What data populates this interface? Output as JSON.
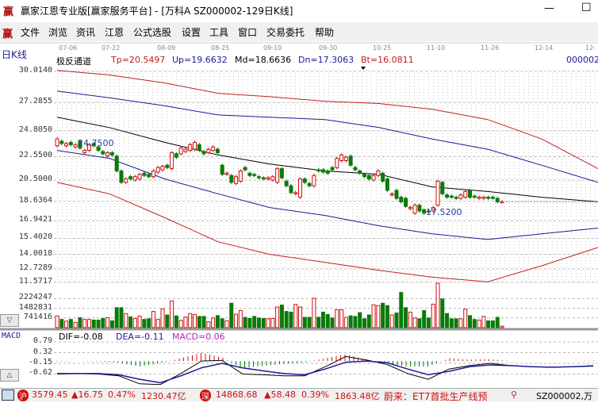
{
  "window": {
    "title": "赢家江恩专业版[赢家服务平台] - [万科A   SZ000002-129日K线]",
    "logo": "赢",
    "minimize_label": "—",
    "maximize_label": "☐"
  },
  "menu": {
    "logo": "赢",
    "items": [
      "文件",
      "浏览",
      "资讯",
      "江恩",
      "公式选股",
      "设置",
      "工具",
      "窗口",
      "交易委托",
      "帮助"
    ]
  },
  "chart_header": {
    "period_label": "日K线",
    "dates": [
      "07-06",
      "07-22",
      "08-09",
      "08-25",
      "09-10",
      "09-30",
      "10-25",
      "11-10",
      "11-26",
      "12-14",
      "12-"
    ],
    "indicator_name": "极反通道",
    "tp": "Tp=20.5497",
    "up": "Up=19.6632",
    "md": "Md=18.6636",
    "dn": "Dn=17.3063",
    "bt": "Bt=16.0811",
    "code_partial": "000002"
  },
  "colors": {
    "up": "#d01010",
    "down": "#0a7a0a",
    "tp": "#c02020",
    "band_blue": "#1a1a9a",
    "md": "#000000",
    "dea": "#1a1a9a",
    "macd_label": "#c020c0"
  },
  "chart_data": [
    {
      "type": "candlestick",
      "title": "万科A SZ000002 日K线",
      "y_ticks": [
        "30.0140",
        "27.2855",
        "24.8050",
        "22.5500",
        "20.5000",
        "18.6364",
        "16.9421",
        "15.4020",
        "14.0018",
        "12.7289",
        "11.5717"
      ],
      "annotations": {
        "high_label": "24.7500",
        "low_label": "17.5200"
      },
      "candles_open_close": [
        [
          23.5,
          24.1
        ],
        [
          23.9,
          23.7
        ],
        [
          23.5,
          23.7
        ],
        [
          23.8,
          23.6
        ],
        [
          23.4,
          23.6
        ],
        [
          23.9,
          23.3
        ],
        [
          22.9,
          23.1
        ],
        [
          23.1,
          23.6
        ],
        [
          23.7,
          23.5
        ],
        [
          23.4,
          23.1
        ],
        [
          23.0,
          22.8
        ],
        [
          22.6,
          22.9
        ],
        [
          22.9,
          22.7
        ],
        [
          22.6,
          21.3
        ],
        [
          21.3,
          20.3
        ],
        [
          20.3,
          20.6
        ],
        [
          20.8,
          20.6
        ],
        [
          20.5,
          20.8
        ],
        [
          20.6,
          21.0
        ],
        [
          21.1,
          20.9
        ],
        [
          21.0,
          20.8
        ],
        [
          20.8,
          21.3
        ],
        [
          21.2,
          21.6
        ],
        [
          21.4,
          21.7
        ],
        [
          21.8,
          21.6
        ],
        [
          21.5,
          22.9
        ],
        [
          22.8,
          22.5
        ],
        [
          22.8,
          23.3
        ],
        [
          23.0,
          23.2
        ],
        [
          23.1,
          23.6
        ],
        [
          23.2,
          23.8
        ],
        [
          23.6,
          23.1
        ],
        [
          23.0,
          22.8
        ],
        [
          22.9,
          23.2
        ],
        [
          23.1,
          23.4
        ],
        [
          23.2,
          22.9
        ],
        [
          21.8,
          21.0
        ],
        [
          21.0,
          21.1
        ],
        [
          20.9,
          20.3
        ],
        [
          20.2,
          20.8
        ],
        [
          20.4,
          21.3
        ],
        [
          21.6,
          21.4
        ],
        [
          21.1,
          20.9
        ],
        [
          21.0,
          20.9
        ],
        [
          20.8,
          20.7
        ],
        [
          20.7,
          20.6
        ],
        [
          20.6,
          20.7
        ],
        [
          20.5,
          20.8
        ],
        [
          20.3,
          21.5
        ],
        [
          21.5,
          20.7
        ],
        [
          20.4,
          20.0
        ],
        [
          20.0,
          19.4
        ],
        [
          19.3,
          19.4
        ],
        [
          19.0,
          20.6
        ],
        [
          20.6,
          20.3
        ],
        [
          20.2,
          20.0
        ],
        [
          20.0,
          20.9
        ],
        [
          21.4,
          21.3
        ],
        [
          21.4,
          21.2
        ],
        [
          21.3,
          21.1
        ],
        [
          21.6,
          21.4
        ],
        [
          21.6,
          22.4
        ],
        [
          22.2,
          22.7
        ],
        [
          22.2,
          22.5
        ],
        [
          22.6,
          21.8
        ],
        [
          21.6,
          21.4
        ],
        [
          21.3,
          21.1
        ],
        [
          21.0,
          20.8
        ],
        [
          20.9,
          20.6
        ],
        [
          20.5,
          20.9
        ],
        [
          20.9,
          21.3
        ],
        [
          21.1,
          20.4
        ],
        [
          20.6,
          19.6
        ],
        [
          19.2,
          19.3
        ],
        [
          19.6,
          18.9
        ],
        [
          19.0,
          18.6
        ],
        [
          18.9,
          18.2
        ],
        [
          18.0,
          18.1
        ],
        [
          17.6,
          18.3
        ],
        [
          18.3,
          17.8
        ],
        [
          17.9,
          17.6
        ],
        [
          17.8,
          17.7
        ],
        [
          17.8,
          18.1
        ],
        [
          18.3,
          20.4
        ],
        [
          20.3,
          19.3
        ],
        [
          19.2,
          19.0
        ],
        [
          19.1,
          19.0
        ],
        [
          19.0,
          18.9
        ],
        [
          18.9,
          19.2
        ],
        [
          19.0,
          19.5
        ],
        [
          19.6,
          19.0
        ],
        [
          19.1,
          19.0
        ],
        [
          18.9,
          19.0
        ],
        [
          18.9,
          19.0
        ],
        [
          19.0,
          18.9
        ],
        [
          19.0,
          18.9
        ],
        [
          18.9,
          18.6
        ],
        [
          18.6,
          18.6
        ]
      ],
      "bands": {
        "Tp": [
          30.1,
          29.7,
          29.0,
          28.1,
          27.8,
          27.4,
          27.2,
          26.7,
          25.8,
          24.1,
          21.5
        ],
        "Up": [
          28.3,
          27.7,
          27.0,
          26.2,
          26.0,
          25.8,
          25.1,
          24.1,
          23.2,
          21.8,
          20.3
        ],
        "Md": [
          26.0,
          25.1,
          23.8,
          22.7,
          21.9,
          21.3,
          21.0,
          19.9,
          19.5,
          19.0,
          18.6
        ],
        "Dn": [
          23.1,
          22.4,
          20.6,
          19.3,
          18.1,
          17.4,
          16.5,
          15.8,
          15.3,
          15.8,
          16.3
        ],
        "Bt": [
          20.3,
          19.3,
          17.2,
          15.1,
          14.0,
          13.3,
          12.6,
          12.0,
          11.6,
          13.0,
          14.6
        ]
      }
    },
    {
      "type": "bar",
      "title": "volume",
      "y_ticks": [
        "2224247",
        "1482831",
        "741416"
      ],
      "values": [
        900000,
        630000,
        500000,
        630000,
        400000,
        760000,
        630000,
        630000,
        580000,
        580000,
        700000,
        760000,
        520000,
        1530000,
        1530000,
        1080000,
        830000,
        700000,
        880000,
        630000,
        680000,
        1240000,
        630000,
        1440000,
        970000,
        2050000,
        900000,
        560000,
        810000,
        1080000,
        1010000,
        860000,
        860000,
        450000,
        740000,
        920000,
        680000,
        520000,
        1870000,
        1030000,
        1310000,
        790000,
        700000,
        860000,
        740000,
        700000,
        680000,
        700000,
        1580000,
        1730000,
        1240000,
        1190000,
        1780000,
        1580000,
        790000,
        790000,
        2250000,
        790000,
        1190000,
        1010000,
        740000,
        1370000,
        1370000,
        790000,
        900000,
        860000,
        1150000,
        680000,
        970000,
        1750000,
        1690000,
        1870000,
        1690000,
        970000,
        1120000,
        2700000,
        1530000,
        1190000,
        740000,
        680000,
        1310000,
        740000,
        1800000,
        3400000,
        2200000,
        1080000,
        680000,
        680000,
        680000,
        1420000,
        920000,
        630000,
        580000,
        860000,
        520000,
        520000,
        790000,
        110000
      ]
    },
    {
      "type": "line",
      "title": "MACD",
      "y_ticks": [
        "0.79",
        "0.32",
        "-0.15",
        "-0.62"
      ],
      "dif": [
        -0.62,
        -0.6,
        -0.62,
        -0.7,
        -1.05,
        -1.08,
        -0.6,
        -0.05,
        -0.02,
        -0.62,
        -0.65,
        -0.7,
        -0.7,
        -0.3,
        0.15,
        0.0,
        -0.2,
        -0.6,
        -0.85,
        -0.4,
        -0.25,
        -0.15,
        -0.25,
        -0.3,
        -0.32,
        -0.3,
        -0.25
      ],
      "dea": [
        -0.6,
        -0.6,
        -0.6,
        -0.65,
        -0.85,
        -1.0,
        -0.7,
        -0.35,
        -0.15,
        -0.35,
        -0.48,
        -0.6,
        -0.65,
        -0.4,
        -0.1,
        -0.05,
        -0.12,
        -0.4,
        -0.65,
        -0.5,
        -0.3,
        -0.22,
        -0.25,
        -0.3,
        -0.32,
        -0.3,
        -0.27
      ]
    }
  ],
  "macd_header": {
    "name": "MACD",
    "dif": "DIF=-0.08",
    "dea": "DEA=-0.11",
    "macd": "MACD=0.06"
  },
  "panel_buttons": {
    "volume_toggle": "▽",
    "macd_toggle": "△"
  },
  "status": {
    "sh_badge": "沪",
    "sh_index": "3579.45",
    "sh_change": "▲16.75",
    "sh_pct": "0.47%",
    "sh_amount": "1230.47亿",
    "sz_badge": "深",
    "sz_index": "14868.68",
    "sz_change": "▲58.48",
    "sz_pct": "0.39%",
    "sz_amount": "1863.48亿",
    "news": "蔚来：ET7首批生产线预",
    "stock": "SZ000002,万"
  }
}
